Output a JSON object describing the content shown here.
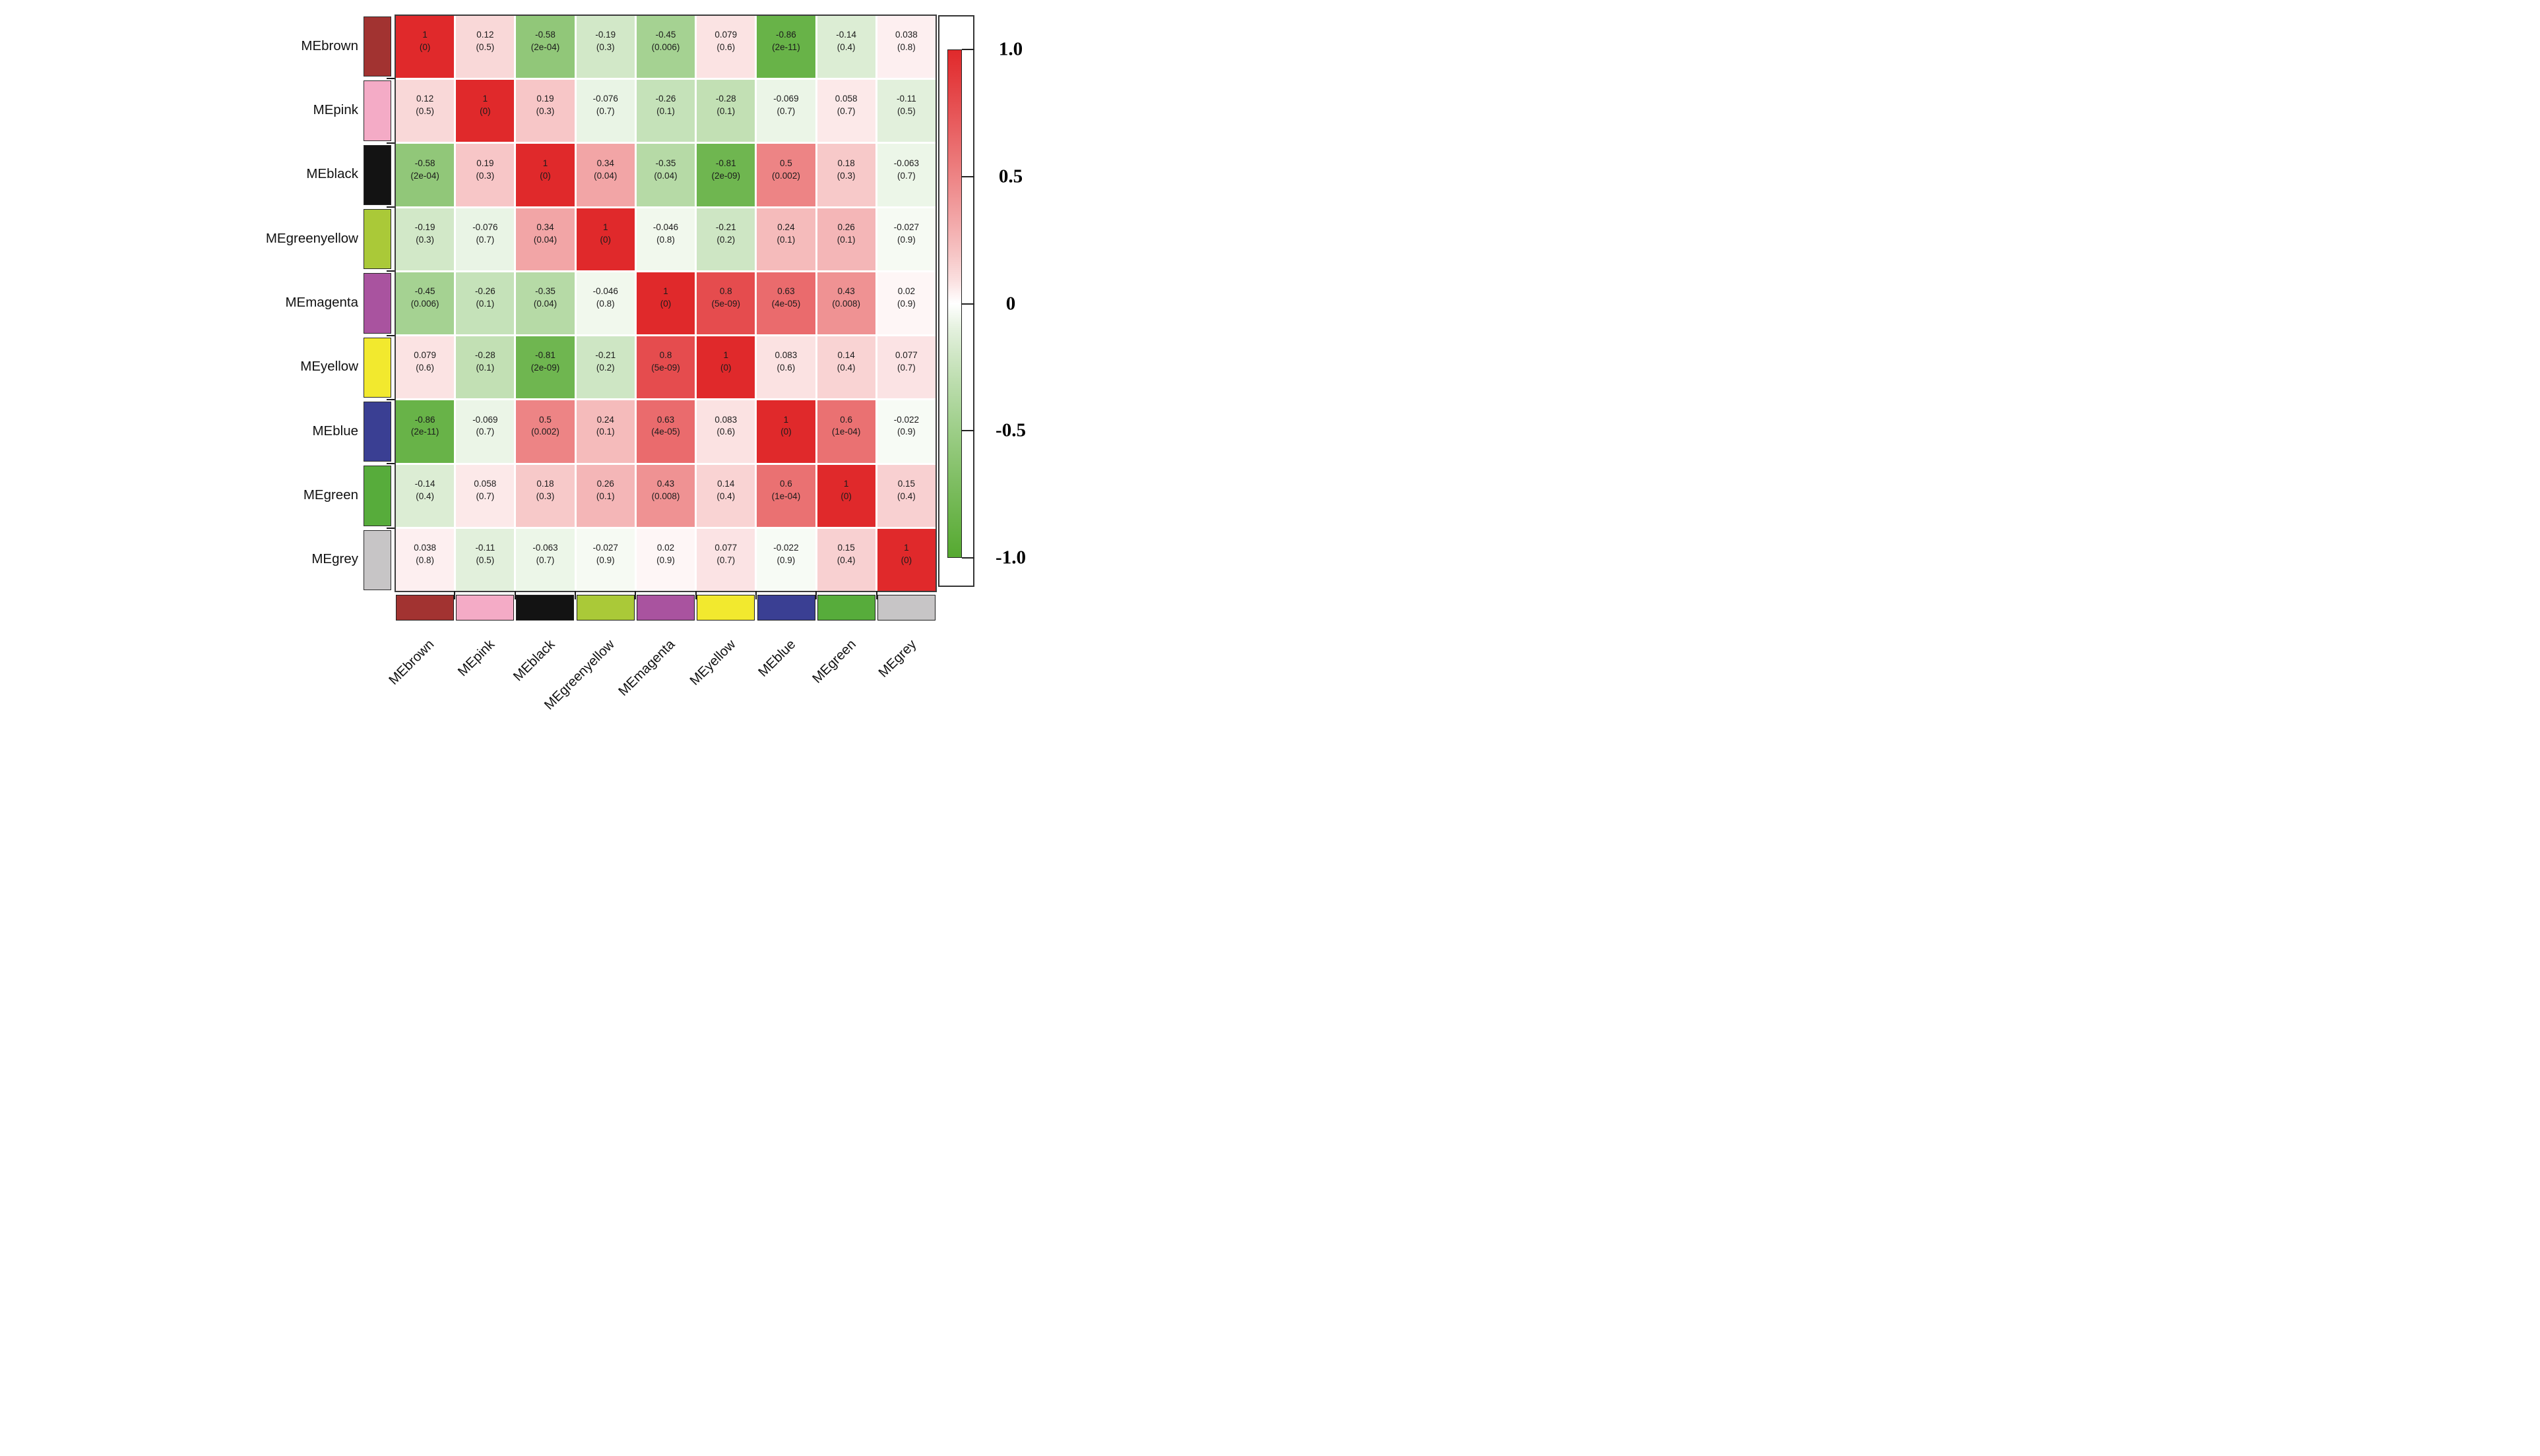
{
  "chart_data": {
    "type": "heatmap",
    "title": "",
    "description": "Module eigengene adjacency/correlation heatmap; each cell shows correlation and (p-value)",
    "labels": [
      "MEbrown",
      "MEpink",
      "MEblack",
      "MEgreenyellow",
      "MEmagenta",
      "MEyellow",
      "MEblue",
      "MEgreen",
      "MEgrey"
    ],
    "module_colors": {
      "MEbrown": "#a23331",
      "MEpink": "#f4abc6",
      "MEblack": "#131313",
      "MEgreenyellow": "#aac938",
      "MEmagenta": "#a9539f",
      "MEyellow": "#f2e92e",
      "MEblue": "#3a3f93",
      "MEgreen": "#57ac3b",
      "MEgrey": "#c7c5c6"
    },
    "correlations": [
      [
        "1",
        "0.12",
        "-0.58",
        "-0.19",
        "-0.45",
        "0.079",
        "-0.86",
        "-0.14",
        "0.038"
      ],
      [
        "0.12",
        "1",
        "0.19",
        "-0.076",
        "-0.26",
        "-0.28",
        "-0.069",
        "0.058",
        "-0.11"
      ],
      [
        "-0.58",
        "0.19",
        "1",
        "0.34",
        "-0.35",
        "-0.81",
        "0.5",
        "0.18",
        "-0.063"
      ],
      [
        "-0.19",
        "-0.076",
        "0.34",
        "1",
        "-0.046",
        "-0.21",
        "0.24",
        "0.26",
        "-0.027"
      ],
      [
        "-0.45",
        "-0.26",
        "-0.35",
        "-0.046",
        "1",
        "0.8",
        "0.63",
        "0.43",
        "0.02"
      ],
      [
        "0.079",
        "-0.28",
        "-0.81",
        "-0.21",
        "0.8",
        "1",
        "0.083",
        "0.14",
        "0.077"
      ],
      [
        "-0.86",
        "-0.069",
        "0.5",
        "0.24",
        "0.63",
        "0.083",
        "1",
        "0.6",
        "-0.022"
      ],
      [
        "-0.14",
        "0.058",
        "0.18",
        "0.26",
        "0.43",
        "0.14",
        "0.6",
        "1",
        "0.15"
      ],
      [
        "0.038",
        "-0.11",
        "-0.063",
        "-0.027",
        "0.02",
        "0.077",
        "-0.022",
        "0.15",
        "1"
      ]
    ],
    "p_values": [
      [
        "0",
        "0.5",
        "2e-04",
        "0.3",
        "0.006",
        "0.6",
        "2e-11",
        "0.4",
        "0.8"
      ],
      [
        "0.5",
        "0",
        "0.3",
        "0.7",
        "0.1",
        "0.1",
        "0.7",
        "0.7",
        "0.5"
      ],
      [
        "2e-04",
        "0.3",
        "0",
        "0.04",
        "0.04",
        "2e-09",
        "0.002",
        "0.3",
        "0.7"
      ],
      [
        "0.3",
        "0.7",
        "0.04",
        "0",
        "0.8",
        "0.2",
        "0.1",
        "0.1",
        "0.9"
      ],
      [
        "0.006",
        "0.1",
        "0.04",
        "0.8",
        "0",
        "5e-09",
        "4e-05",
        "0.008",
        "0.9"
      ],
      [
        "0.6",
        "0.1",
        "2e-09",
        "0.2",
        "5e-09",
        "0",
        "0.6",
        "0.4",
        "0.7"
      ],
      [
        "2e-11",
        "0.7",
        "0.002",
        "0.1",
        "4e-05",
        "0.6",
        "0",
        "1e-04",
        "0.9"
      ],
      [
        "0.4",
        "0.7",
        "0.3",
        "0.1",
        "0.008",
        "0.4",
        "1e-04",
        "0",
        "0.4"
      ],
      [
        "0.8",
        "0.5",
        "0.7",
        "0.9",
        "0.9",
        "0.7",
        "0.9",
        "0.4",
        "0"
      ]
    ],
    "colorbar": {
      "ticks": [
        "1.0",
        "0.5",
        "0",
        "-0.5",
        "-1.0"
      ],
      "tick_values": [
        1,
        0.5,
        0,
        -0.5,
        -1
      ],
      "range": [
        -1,
        1
      ],
      "position": "right"
    },
    "colors": {
      "positive_end": "#e0292b",
      "zero": "#ffffff",
      "negative_end": "#55a930",
      "cell_text": "#1b1b1b",
      "frame": "#3c3c3c"
    },
    "layout_hints": {
      "grid": "9x9 symmetric matrix",
      "row_labels": "left",
      "column_labels": "bottom, rotated 45deg",
      "module_color_strips": "left column and bottom row"
    }
  }
}
